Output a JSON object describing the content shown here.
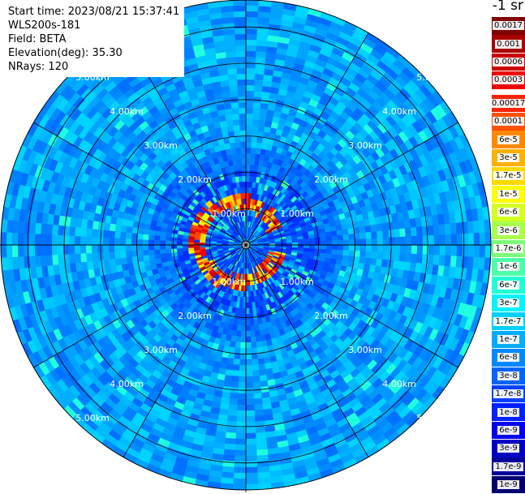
{
  "header": {
    "start_time": "Start time: 2023/08/21 15:37:41",
    "instrument": "WLS200s-181",
    "field": "Field: BETA",
    "elevation": "Elevation(deg): 35.30",
    "nrays": "NRays: 120"
  },
  "unit_title": "-1 sr",
  "range_labels": [
    "1.00km",
    "2.00km",
    "3.00km",
    "4.00km",
    "5.00km"
  ],
  "legend": [
    {
      "label": "0.0017",
      "color": "#7f0000"
    },
    {
      "label": "0.001",
      "color": "#a80000"
    },
    {
      "label": "0.0006",
      "color": "#cc0000"
    },
    {
      "label": "0.0003",
      "color": "#ee0000"
    },
    {
      "label": "0.00017",
      "color": "#ff2200"
    },
    {
      "label": "0.0001",
      "color": "#ff5000"
    },
    {
      "label": "6e-5",
      "color": "#ff8800"
    },
    {
      "label": "3e-5",
      "color": "#ffb000"
    },
    {
      "label": "1.7e-5",
      "color": "#ffd800"
    },
    {
      "label": "1e-5",
      "color": "#ffff00"
    },
    {
      "label": "6e-6",
      "color": "#d4ff22"
    },
    {
      "label": "3e-6",
      "color": "#a8ff4e"
    },
    {
      "label": "1.7e-6",
      "color": "#7cff7a"
    },
    {
      "label": "1e-6",
      "color": "#4effa8"
    },
    {
      "label": "6e-7",
      "color": "#22ffd4"
    },
    {
      "label": "3e-7",
      "color": "#00f4ff"
    },
    {
      "label": "1.7e-7",
      "color": "#00d0ff"
    },
    {
      "label": "1e-7",
      "color": "#00acff"
    },
    {
      "label": "6e-8",
      "color": "#0088ff"
    },
    {
      "label": "3e-8",
      "color": "#0064ff"
    },
    {
      "label": "1.7e-8",
      "color": "#0040ff"
    },
    {
      "label": "1e-8",
      "color": "#0020ff"
    },
    {
      "label": "6e-9",
      "color": "#0000ee"
    },
    {
      "label": "3e-9",
      "color": "#0000c4"
    },
    {
      "label": "1.7e-9",
      "color": "#00009a"
    },
    {
      "label": "1e-9",
      "color": "#000070"
    }
  ]
}
